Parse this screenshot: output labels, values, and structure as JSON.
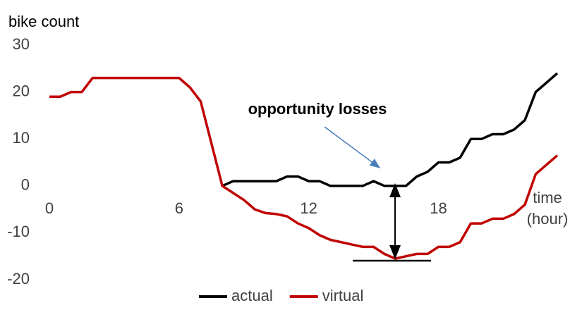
{
  "chart_data": {
    "type": "line",
    "y_label": "bike count",
    "x_label": [
      "time",
      "(hour)"
    ],
    "annotation": "opportunity losses",
    "x": [
      0,
      0.5,
      1,
      1.5,
      2,
      2.5,
      3,
      3.5,
      4,
      4.5,
      5,
      5.5,
      6,
      6.5,
      7,
      7.5,
      8,
      8.5,
      9,
      9.5,
      10,
      10.5,
      11,
      11.5,
      12,
      12.5,
      13,
      13.5,
      14,
      14.5,
      15,
      15.5,
      16,
      16.5,
      17,
      17.5,
      18,
      18.5,
      19,
      19.5,
      20,
      20.5,
      21,
      21.5,
      22,
      22.5,
      23,
      23.5
    ],
    "series": [
      {
        "name": "actual",
        "color": "#000000",
        "values": [
          null,
          null,
          null,
          null,
          null,
          null,
          null,
          null,
          null,
          null,
          null,
          null,
          null,
          null,
          null,
          null,
          0,
          1,
          1,
          1,
          1,
          1,
          2,
          2,
          1,
          1,
          0,
          0,
          0,
          0,
          1,
          0,
          0,
          0,
          2,
          3,
          5,
          5,
          6,
          10,
          10,
          11,
          11,
          12,
          14,
          20,
          22,
          24
        ]
      },
      {
        "name": "virtual",
        "color": "#c00000",
        "values": [
          19,
          19,
          20,
          20,
          23,
          23,
          23,
          23,
          23,
          23,
          23,
          23,
          23,
          21,
          18,
          9,
          0,
          -1.5,
          -3,
          -5,
          -5.8,
          -6,
          -6.5,
          -8,
          -9,
          -10.5,
          -11.5,
          -12,
          -12.5,
          -13,
          -13,
          -14.5,
          -15.5,
          -15,
          -14.5,
          -14.5,
          -13,
          -13,
          -12,
          -8,
          -8,
          -7,
          -7,
          -6,
          -4,
          2.5,
          4.5,
          6.5
        ]
      }
    ],
    "xlim": [
      0,
      23.5
    ],
    "xticks": [
      0,
      6,
      12,
      18
    ],
    "ylim": [
      -20,
      30
    ],
    "yticks": [
      -20,
      -10,
      0,
      10,
      20,
      30
    ],
    "grid": false
  }
}
